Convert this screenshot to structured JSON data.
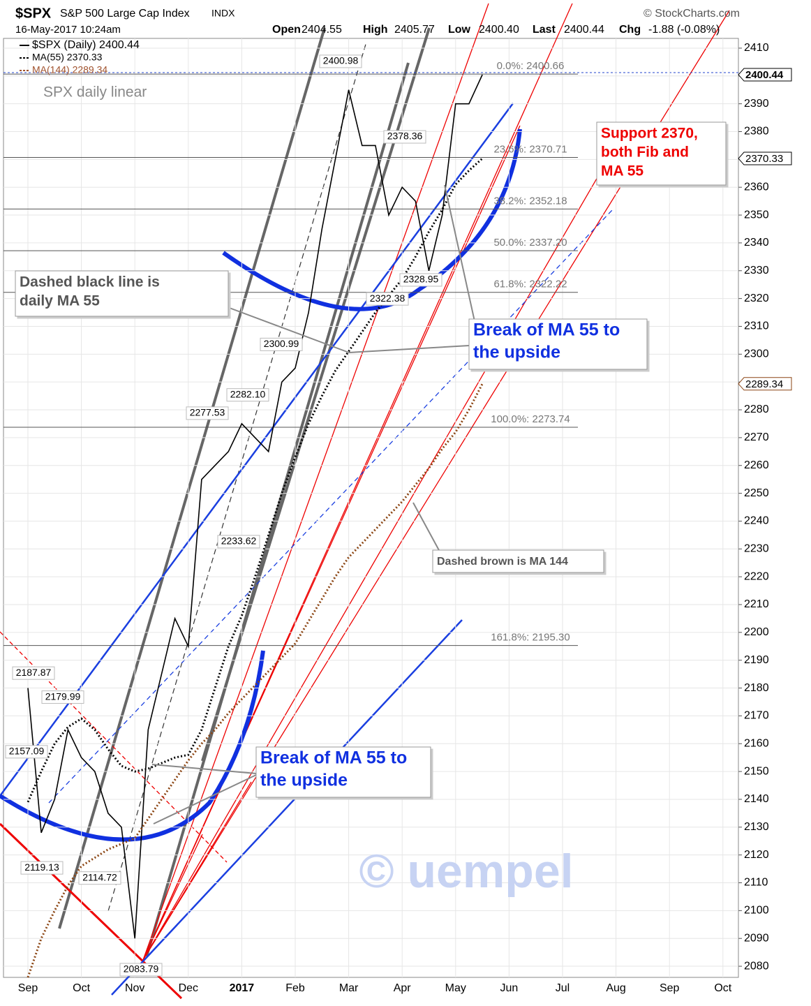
{
  "chart_data": {
    "type": "line",
    "symbol": "$SPX",
    "title": "S&P 500 Large Cap Index",
    "exchange": "INDX",
    "timestamp": "16-May-2017 10:24am",
    "source": "© StockCharts.com",
    "quote": {
      "open_label": "Open",
      "open": 2404.55,
      "high_label": "High",
      "high": 2405.77,
      "low_label": "Low",
      "low": {
        "value": 2400.4,
        "label": "2400.40"
      },
      "last_label": "Last",
      "last": 2400.44,
      "chg_label": "Chg",
      "chg": "-1.88 (-0.08%)"
    },
    "subtitle": "SPX daily linear",
    "watermark": "© uempel",
    "categories": [
      "Sep",
      null,
      null,
      null,
      "Oct",
      null,
      null,
      null,
      "Nov",
      null,
      null,
      null,
      "Dec",
      null,
      null,
      null,
      "2017",
      null,
      null,
      null,
      "Feb",
      null,
      null,
      null,
      "Mar",
      null,
      null,
      null,
      "Apr",
      null,
      null,
      null,
      "May",
      null,
      null,
      null,
      "Jun",
      null,
      null,
      null,
      "Jul",
      null,
      null,
      null,
      "Aug",
      null,
      null,
      null,
      "Sep",
      null,
      null,
      null,
      "Oct"
    ],
    "series": [
      {
        "name": "$SPX (Daily) 2400.44",
        "color": "#000000",
        "values": [
          2180,
          2128,
          2140,
          2165,
          2155,
          2150,
          2135,
          2130,
          2090,
          2165,
          2185,
          2205,
          2195,
          2255,
          2260,
          2265,
          2275,
          2270,
          2265,
          2290,
          2295,
          2315,
          2345,
          2370,
          2395,
          2375,
          2375,
          2350,
          2360,
          2355,
          2330,
          2350,
          2390,
          2390,
          2400.44,
          null,
          null,
          null,
          null,
          null,
          null,
          null,
          null,
          null,
          null,
          null,
          null,
          null,
          null,
          null,
          null,
          null,
          null
        ]
      },
      {
        "name": "MA(55) 2370.33",
        "color": "#000000",
        "values": [
          2139,
          2150,
          2160,
          2166,
          2169,
          2165,
          2158,
          2152,
          2150,
          2151,
          2153,
          2155,
          2156,
          2165,
          2180,
          2195,
          2206,
          2220,
          2235,
          2250,
          2263,
          2275,
          2285,
          2294,
          2301,
          2308,
          2315,
          2321,
          2327,
          2335,
          2344,
          2352,
          2361,
          2366,
          2370.33,
          null,
          null,
          null,
          null,
          null,
          null,
          null,
          null,
          null,
          null,
          null,
          null,
          null,
          null,
          null,
          null,
          null,
          null
        ]
      },
      {
        "name": "MA(144) 2289.34",
        "color": "#8b4513",
        "values": [
          2076,
          2090,
          2100,
          2109,
          2116,
          2119,
          2122,
          2124,
          2126,
          2133,
          2140,
          2147,
          2154,
          2160,
          2165,
          2171,
          2176,
          2181,
          2186,
          2191,
          2196,
          2204,
          2212,
          2220,
          2227,
          2232,
          2237,
          2242,
          2247,
          2253,
          2259,
          2266,
          2272,
          2280,
          2289.34,
          null,
          null,
          null,
          null,
          null,
          null,
          null,
          null,
          null,
          null,
          null,
          null,
          null,
          null,
          null,
          null,
          null,
          null
        ]
      }
    ],
    "ylim": [
      2076,
      2413.5
    ],
    "yticks": [
      2080,
      2090,
      2100,
      2110,
      2120,
      2130,
      2140,
      2150,
      2160,
      2170,
      2180,
      2190,
      2200,
      2210,
      2220,
      2230,
      2240,
      2250,
      2260,
      2270,
      2280,
      2290,
      2300,
      2310,
      2320,
      2330,
      2340,
      2350,
      2360,
      2370,
      2380,
      2390,
      2400,
      2410
    ],
    "grid": true,
    "last_markers": [
      2400.44,
      2370.33,
      2289.34
    ],
    "fib_levels": [
      {
        "label": "0.0%: 2400.66",
        "value": 2400.66
      },
      {
        "label": "23.6%: 2370.71",
        "value": 2370.71
      },
      {
        "label": "38.2%: 2352.18",
        "value": 2352.18
      },
      {
        "label": "50.0%: 2337.20",
        "value": 2337.2
      },
      {
        "label": "61.8%: 2322.22",
        "value": 2322.22
      },
      {
        "label": "100.0%: 2273.74",
        "value": 2273.74
      },
      {
        "label": "161.8%: 2195.30",
        "value": 2195.3
      }
    ],
    "price_labels": [
      2400.98,
      2378.36,
      2328.95,
      2322.38,
      2300.99,
      {
        "value": 2282.1,
        "label": "2282.10"
      },
      2277.53,
      2233.62,
      2187.87,
      2179.99,
      2157.09,
      2119.13,
      2114.72,
      2083.79
    ],
    "annotations": [
      {
        "lines": [
          "Dashed black line is",
          "daily MA 55"
        ]
      },
      {
        "lines": [
          "Support 2370,",
          "both Fib and",
          "MA 55"
        ]
      },
      {
        "lines": [
          "Break of MA 55 to",
          "the upside"
        ]
      },
      {
        "lines": [
          "Dashed brown is MA 144"
        ]
      },
      {
        "lines": [
          "Break of MA 55  to",
          "the upside"
        ]
      }
    ]
  }
}
